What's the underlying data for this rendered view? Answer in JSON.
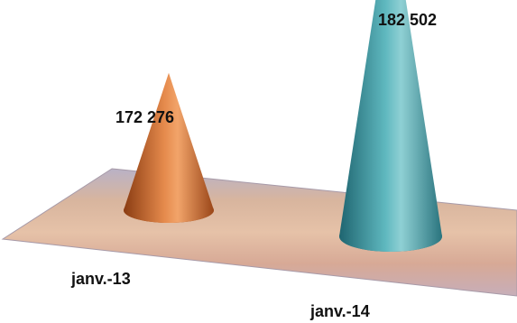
{
  "chart_data": {
    "type": "bar",
    "categories": [
      "janv.-13",
      "janv.-14"
    ],
    "values": [
      172276,
      182502
    ],
    "value_labels": [
      "172 276",
      "182 502"
    ],
    "title": "",
    "xlabel": "",
    "ylabel": "",
    "grid": false,
    "legend": "none",
    "colors": [
      "#c8652a",
      "#3f9aa2"
    ],
    "floor_color": "#d9a98f"
  }
}
